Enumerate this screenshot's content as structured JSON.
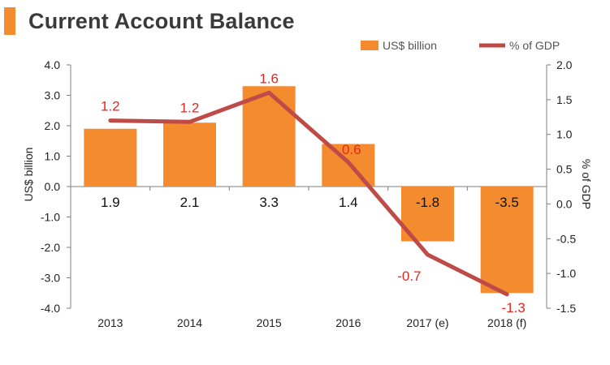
{
  "header": {
    "title": "Current Account Balance"
  },
  "chart_data": {
    "type": "bar",
    "categories": [
      "2013",
      "2014",
      "2015",
      "2016",
      "2017 (e)",
      "2018 (f)"
    ],
    "series": [
      {
        "name": "US$ billion",
        "kind": "bar",
        "axis": "left",
        "color": "#f58b2f",
        "values": [
          1.9,
          2.1,
          3.3,
          1.4,
          -1.8,
          -3.5
        ],
        "labels": [
          "1.9",
          "2.1",
          "3.3",
          "1.4",
          "-1.8",
          "-3.5"
        ]
      },
      {
        "name": "% of GDP",
        "kind": "line",
        "axis": "right",
        "color": "#be4b48",
        "values": [
          1.2,
          1.18,
          1.6,
          0.6,
          -0.73,
          -1.3
        ],
        "labels": [
          "1.2",
          "1.2",
          "1.6",
          "0.6",
          "-0.7",
          "-1.3"
        ]
      }
    ],
    "y_left": {
      "label": "US$ billion",
      "ylim": [
        -4.0,
        4.0
      ],
      "ticks": [
        "-4.0",
        "-3.0",
        "-2.0",
        "-1.0",
        "0.0",
        "1.0",
        "2.0",
        "3.0",
        "4.0"
      ]
    },
    "y_right": {
      "label": "% of GDP",
      "ylim": [
        -1.5,
        2.0
      ],
      "ticks": [
        "-1.5",
        "-1.0",
        "-0.5",
        "0.0",
        "0.5",
        "1.0",
        "1.5",
        "2.0"
      ]
    },
    "legend_position": "top-right",
    "grid": false,
    "label_color": "#e8261c"
  }
}
